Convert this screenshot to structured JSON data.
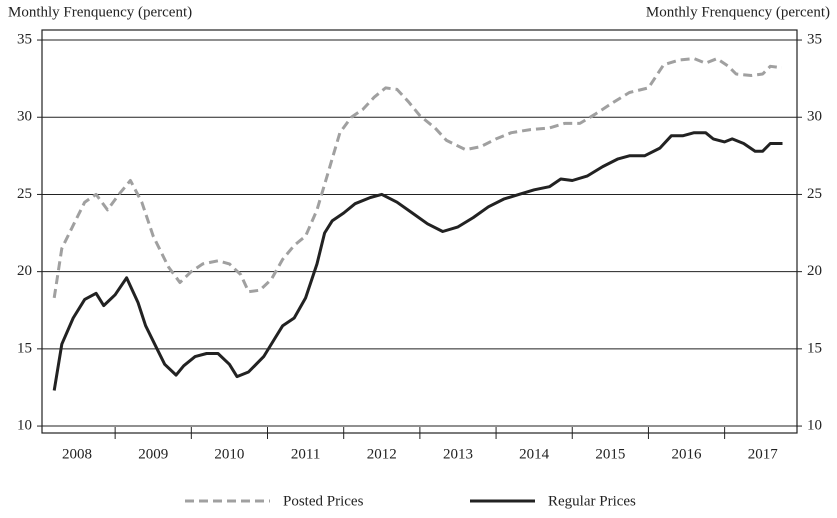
{
  "chart_data": {
    "type": "line",
    "y_label_left": "Monthly Frenquency (percent)",
    "y_label_right": "Monthly Frenquency (percent)",
    "xlim": [
      2008.04,
      2017.95
    ],
    "xticks": [
      2009,
      2010,
      2011,
      2012,
      2013,
      2014,
      2015,
      2016,
      2017
    ],
    "xtick_labels": [
      {
        "value": 2008.5,
        "label": "2008"
      },
      {
        "value": 2009.5,
        "label": "2009"
      },
      {
        "value": 2010.5,
        "label": "2010"
      },
      {
        "value": 2011.5,
        "label": "2011"
      },
      {
        "value": 2012.5,
        "label": "2012"
      },
      {
        "value": 2013.5,
        "label": "2013"
      },
      {
        "value": 2014.5,
        "label": "2014"
      },
      {
        "value": 2015.5,
        "label": "2015"
      },
      {
        "value": 2016.5,
        "label": "2016"
      },
      {
        "value": 2017.5,
        "label": "2017"
      }
    ],
    "ylim": [
      9.55,
      35.65
    ],
    "yticks": [
      10,
      15,
      20,
      25,
      30,
      35
    ],
    "grid": true,
    "legend": "bottom",
    "series": [
      {
        "name": "Posted Prices",
        "color": "#a0a0a0",
        "dashed": true,
        "x": [
          2008.2,
          2008.3,
          2008.45,
          2008.6,
          2008.75,
          2008.9,
          2009.05,
          2009.2,
          2009.35,
          2009.5,
          2009.7,
          2009.85,
          2010.0,
          2010.15,
          2010.35,
          2010.5,
          2010.65,
          2010.75,
          2010.9,
          2011.05,
          2011.2,
          2011.35,
          2011.5,
          2011.65,
          2011.8,
          2011.95,
          2012.1,
          2012.25,
          2012.4,
          2012.55,
          2012.7,
          2012.85,
          2013.0,
          2013.2,
          2013.35,
          2013.6,
          2013.8,
          2014.0,
          2014.2,
          2014.45,
          2014.7,
          2014.9,
          2015.1,
          2015.3,
          2015.55,
          2015.75,
          2016.0,
          2016.2,
          2016.4,
          2016.6,
          2016.75,
          2016.9,
          2017.05,
          2017.15,
          2017.35,
          2017.5,
          2017.6,
          2017.75
        ],
        "values": [
          18.3,
          21.5,
          23,
          24.5,
          25,
          24,
          25,
          25.9,
          24.5,
          22.3,
          20.3,
          19.3,
          20,
          20.5,
          20.7,
          20.5,
          19.8,
          18.7,
          18.8,
          19.5,
          20.8,
          21.7,
          22.3,
          24,
          26.5,
          29,
          30,
          30.5,
          31.3,
          31.9,
          31.8,
          31,
          30.1,
          29.3,
          28.5,
          27.9,
          28.1,
          28.6,
          29,
          29.2,
          29.3,
          29.6,
          29.6,
          30.2,
          31,
          31.6,
          31.9,
          33.4,
          33.7,
          33.8,
          33.5,
          33.8,
          33.3,
          32.8,
          32.7,
          32.8,
          33.3,
          33.2
        ]
      },
      {
        "name": "Regular Prices",
        "color": "#222222",
        "dashed": false,
        "x": [
          2008.2,
          2008.3,
          2008.45,
          2008.6,
          2008.75,
          2008.85,
          2009.0,
          2009.15,
          2009.3,
          2009.4,
          2009.55,
          2009.65,
          2009.8,
          2009.9,
          2010.05,
          2010.2,
          2010.35,
          2010.5,
          2010.6,
          2010.75,
          2010.95,
          2011.1,
          2011.2,
          2011.35,
          2011.5,
          2011.65,
          2011.75,
          2011.85,
          2012.0,
          2012.15,
          2012.35,
          2012.5,
          2012.7,
          2012.9,
          2013.1,
          2013.3,
          2013.5,
          2013.7,
          2013.9,
          2014.1,
          2014.3,
          2014.5,
          2014.7,
          2014.85,
          2015.0,
          2015.2,
          2015.4,
          2015.6,
          2015.75,
          2015.95,
          2016.15,
          2016.3,
          2016.45,
          2016.6,
          2016.75,
          2016.85,
          2017.0,
          2017.1,
          2017.25,
          2017.4,
          2017.5,
          2017.6,
          2017.76
        ],
        "values": [
          12.3,
          15.3,
          17,
          18.2,
          18.6,
          17.8,
          18.5,
          19.6,
          18,
          16.5,
          15,
          14,
          13.3,
          13.9,
          14.5,
          14.7,
          14.7,
          14,
          13.2,
          13.5,
          14.5,
          15.7,
          16.5,
          17,
          18.3,
          20.5,
          22.5,
          23.3,
          23.8,
          24.4,
          24.8,
          25,
          24.5,
          23.8,
          23.1,
          22.6,
          22.9,
          23.5,
          24.2,
          24.7,
          25,
          25.3,
          25.5,
          26,
          25.9,
          26.2,
          26.8,
          27.3,
          27.5,
          27.5,
          28,
          28.8,
          28.8,
          29,
          29,
          28.6,
          28.4,
          28.6,
          28.3,
          27.8,
          27.8,
          28.3,
          28.3
        ]
      }
    ]
  }
}
